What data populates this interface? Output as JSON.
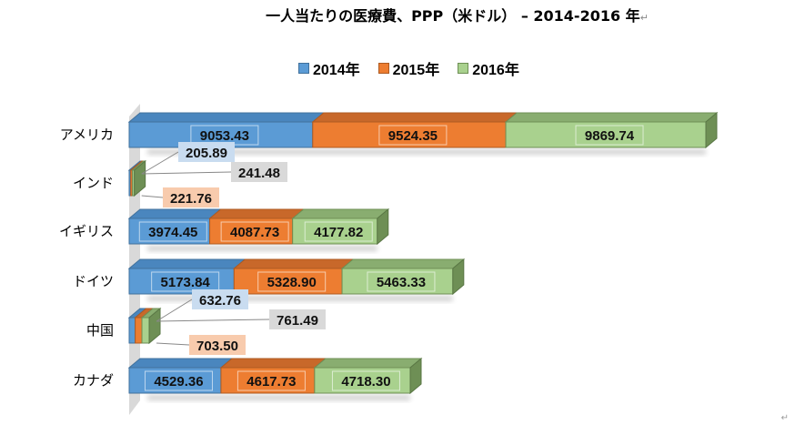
{
  "chart_data": {
    "type": "bar",
    "orientation": "horizontal",
    "stacked": true,
    "style": "3d",
    "title": "一人当たりの医療費、PPP（米ドル） – 2014-2016 年",
    "xlabel": "",
    "ylabel": "",
    "legend_position": "top",
    "grid": false,
    "categories": [
      "アメリカ",
      "インド",
      "イギリス",
      "ドイツ",
      "中国",
      "カナダ"
    ],
    "series": [
      {
        "name": "2014年",
        "color": "#5B9BD5",
        "values": [
          9053.43,
          205.89,
          3974.45,
          5173.84,
          632.76,
          4529.36
        ]
      },
      {
        "name": "2015年",
        "color": "#ED7D31",
        "values": [
          9524.35,
          221.76,
          4087.73,
          5328.9,
          703.5,
          4617.73
        ]
      },
      {
        "name": "2016年",
        "color": "#A9D18E",
        "values": [
          9869.74,
          241.48,
          4177.82,
          5463.33,
          761.49,
          4718.3
        ]
      }
    ],
    "value_labels": {
      "アメリカ": [
        "9053.43",
        "9524.35",
        "9869.74"
      ],
      "インド": [
        "205.89",
        "221.76",
        "241.48"
      ],
      "イギリス": [
        "3974.45",
        "4087.73",
        "4177.82"
      ],
      "ドイツ": [
        "5173.84",
        "5328.90",
        "5463.33"
      ],
      "中国": [
        "632.76",
        "703.50",
        "761.49"
      ],
      "カナダ": [
        "4529.36",
        "4617.73",
        "4718.30"
      ]
    }
  },
  "title": {
    "text": "一人当たりの医療費、PPP（米ドル） – 2014-2016 年",
    "return_mark": "↵"
  },
  "legend": [
    {
      "label": "2014年",
      "color": "#5B9BD5",
      "border": "#41719C"
    },
    {
      "label": "2015年",
      "color": "#ED7D31",
      "border": "#AE5A21"
    },
    {
      "label": "2016年",
      "color": "#A9D18E",
      "border": "#6E8F55"
    }
  ],
  "corner_return_mark": "↵"
}
